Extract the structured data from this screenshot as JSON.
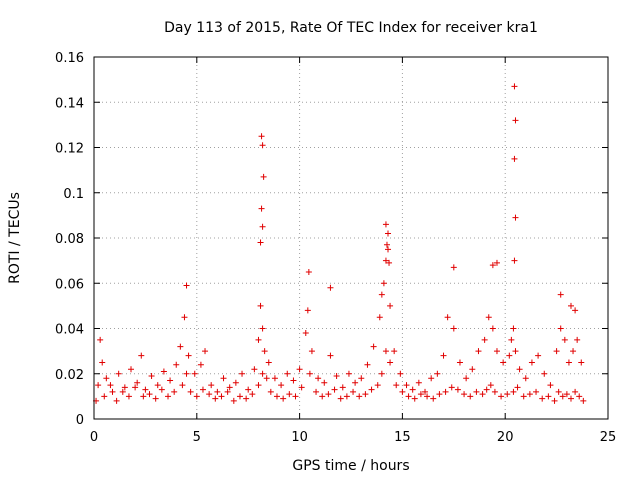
{
  "chart_data": {
    "type": "scatter",
    "title": "Day 113 of 2015, Rate Of TEC Index for receiver kra1",
    "xlabel": "GPS time / hours",
    "ylabel": "ROTI / TECUs",
    "xlim": [
      0,
      25
    ],
    "ylim": [
      0,
      0.16
    ],
    "xticks": [
      0,
      5,
      10,
      15,
      20,
      25
    ],
    "xtick_labels": [
      "0",
      "5",
      "10",
      "15",
      "20",
      "25"
    ],
    "yticks": [
      0,
      0.02,
      0.04,
      0.06,
      0.08,
      0.1,
      0.12,
      0.14,
      0.16
    ],
    "ytick_labels": [
      "0",
      "0.02",
      "0.04",
      "0.06",
      "0.08",
      "0.1",
      "0.12",
      "0.14",
      "0.16"
    ],
    "grid": true,
    "marker": "+",
    "series": [
      {
        "name": "ROTI",
        "color": "#e00000",
        "x": [
          0.2,
          0.4,
          0.6,
          0.9,
          1.2,
          1.5,
          1.8,
          2.1,
          2.3,
          2.5,
          2.8,
          3.1,
          3.4,
          3.7,
          4.0,
          4.2,
          4.4,
          4.6,
          4.9,
          5.2,
          5.4,
          5.7,
          6.0,
          6.3,
          6.6,
          6.9,
          7.2,
          7.5,
          7.8,
          8.0,
          8.1,
          8.2,
          8.3,
          8.5,
          8.8,
          9.1,
          9.4,
          9.7,
          10.0,
          10.3,
          10.4,
          10.6,
          10.9,
          11.2,
          11.5,
          11.8,
          12.1,
          12.4,
          12.7,
          13.0,
          13.3,
          13.6,
          13.9,
          14.0,
          14.1,
          14.2,
          14.3,
          14.4,
          14.6,
          14.9,
          15.2,
          15.5,
          15.8,
          16.1,
          16.4,
          16.7,
          17.0,
          17.2,
          17.5,
          17.8,
          18.1,
          18.4,
          18.7,
          19.0,
          19.2,
          19.4,
          19.6,
          19.9,
          20.2,
          20.3,
          20.4,
          20.5,
          20.7,
          21.0,
          21.3,
          21.6,
          21.9,
          22.2,
          22.5,
          22.7,
          22.9,
          23.1,
          23.3,
          23.5,
          23.7,
          0.1,
          0.3,
          0.5,
          0.8,
          1.1,
          1.4,
          1.7,
          2.0,
          2.4,
          2.7,
          3.0,
          3.3,
          3.6,
          3.9,
          4.3,
          4.5,
          4.7,
          5.0,
          5.3,
          5.6,
          5.9,
          6.2,
          6.5,
          6.8,
          7.1,
          7.4,
          7.7,
          8.0,
          8.2,
          8.4,
          8.6,
          8.9,
          9.2,
          9.5,
          9.8,
          10.1,
          10.5,
          10.8,
          11.1,
          11.4,
          11.7,
          12.0,
          12.3,
          12.6,
          12.9,
          13.2,
          13.5,
          13.8,
          14.0,
          14.2,
          14.4,
          14.7,
          15.0,
          15.3,
          15.6,
          15.9,
          16.2,
          16.5,
          16.8,
          17.1,
          17.4,
          17.7,
          18.0,
          18.3,
          18.6,
          18.9,
          19.1,
          19.3,
          19.5,
          19.8,
          20.1,
          20.4,
          20.6,
          20.9,
          21.2,
          21.5,
          21.8,
          22.1,
          22.4,
          22.6,
          22.8,
          23.0,
          23.2,
          23.4,
          23.6,
          23.8,
          8.15,
          8.2,
          8.25,
          8.15,
          8.2,
          8.1,
          20.45,
          20.5,
          20.45,
          20.5,
          20.45,
          14.2,
          14.3,
          14.25,
          14.35,
          4.5,
          10.45,
          11.5,
          17.5,
          19.4,
          19.6,
          22.7,
          23.2,
          23.4
        ],
        "y": [
          0.015,
          0.025,
          0.018,
          0.012,
          0.02,
          0.014,
          0.022,
          0.016,
          0.028,
          0.013,
          0.019,
          0.015,
          0.021,
          0.017,
          0.024,
          0.032,
          0.045,
          0.028,
          0.02,
          0.024,
          0.03,
          0.015,
          0.012,
          0.018,
          0.014,
          0.016,
          0.02,
          0.013,
          0.022,
          0.035,
          0.05,
          0.04,
          0.03,
          0.025,
          0.018,
          0.015,
          0.02,
          0.017,
          0.022,
          0.038,
          0.048,
          0.03,
          0.018,
          0.016,
          0.028,
          0.019,
          0.014,
          0.02,
          0.016,
          0.018,
          0.024,
          0.032,
          0.045,
          0.055,
          0.06,
          0.07,
          0.075,
          0.05,
          0.03,
          0.02,
          0.015,
          0.013,
          0.016,
          0.012,
          0.018,
          0.02,
          0.028,
          0.045,
          0.04,
          0.025,
          0.018,
          0.022,
          0.03,
          0.035,
          0.045,
          0.04,
          0.03,
          0.025,
          0.028,
          0.035,
          0.04,
          0.03,
          0.022,
          0.018,
          0.025,
          0.028,
          0.02,
          0.015,
          0.03,
          0.04,
          0.035,
          0.025,
          0.03,
          0.035,
          0.025,
          0.008,
          0.035,
          0.01,
          0.015,
          0.008,
          0.012,
          0.01,
          0.014,
          0.01,
          0.011,
          0.009,
          0.013,
          0.01,
          0.012,
          0.015,
          0.02,
          0.012,
          0.01,
          0.013,
          0.011,
          0.009,
          0.01,
          0.012,
          0.008,
          0.01,
          0.009,
          0.011,
          0.015,
          0.02,
          0.018,
          0.012,
          0.01,
          0.009,
          0.011,
          0.01,
          0.014,
          0.02,
          0.012,
          0.01,
          0.011,
          0.013,
          0.009,
          0.01,
          0.012,
          0.01,
          0.011,
          0.013,
          0.015,
          0.02,
          0.03,
          0.025,
          0.015,
          0.012,
          0.01,
          0.009,
          0.011,
          0.01,
          0.009,
          0.011,
          0.012,
          0.014,
          0.013,
          0.011,
          0.01,
          0.012,
          0.011,
          0.013,
          0.015,
          0.012,
          0.01,
          0.011,
          0.012,
          0.014,
          0.01,
          0.011,
          0.012,
          0.009,
          0.01,
          0.008,
          0.012,
          0.01,
          0.011,
          0.009,
          0.012,
          0.01,
          0.008,
          0.125,
          0.121,
          0.107,
          0.093,
          0.085,
          0.078,
          0.147,
          0.132,
          0.115,
          0.089,
          0.07,
          0.086,
          0.082,
          0.077,
          0.069,
          0.059,
          0.065,
          0.058,
          0.067,
          0.068,
          0.069,
          0.055,
          0.05,
          0.048
        ]
      }
    ]
  }
}
